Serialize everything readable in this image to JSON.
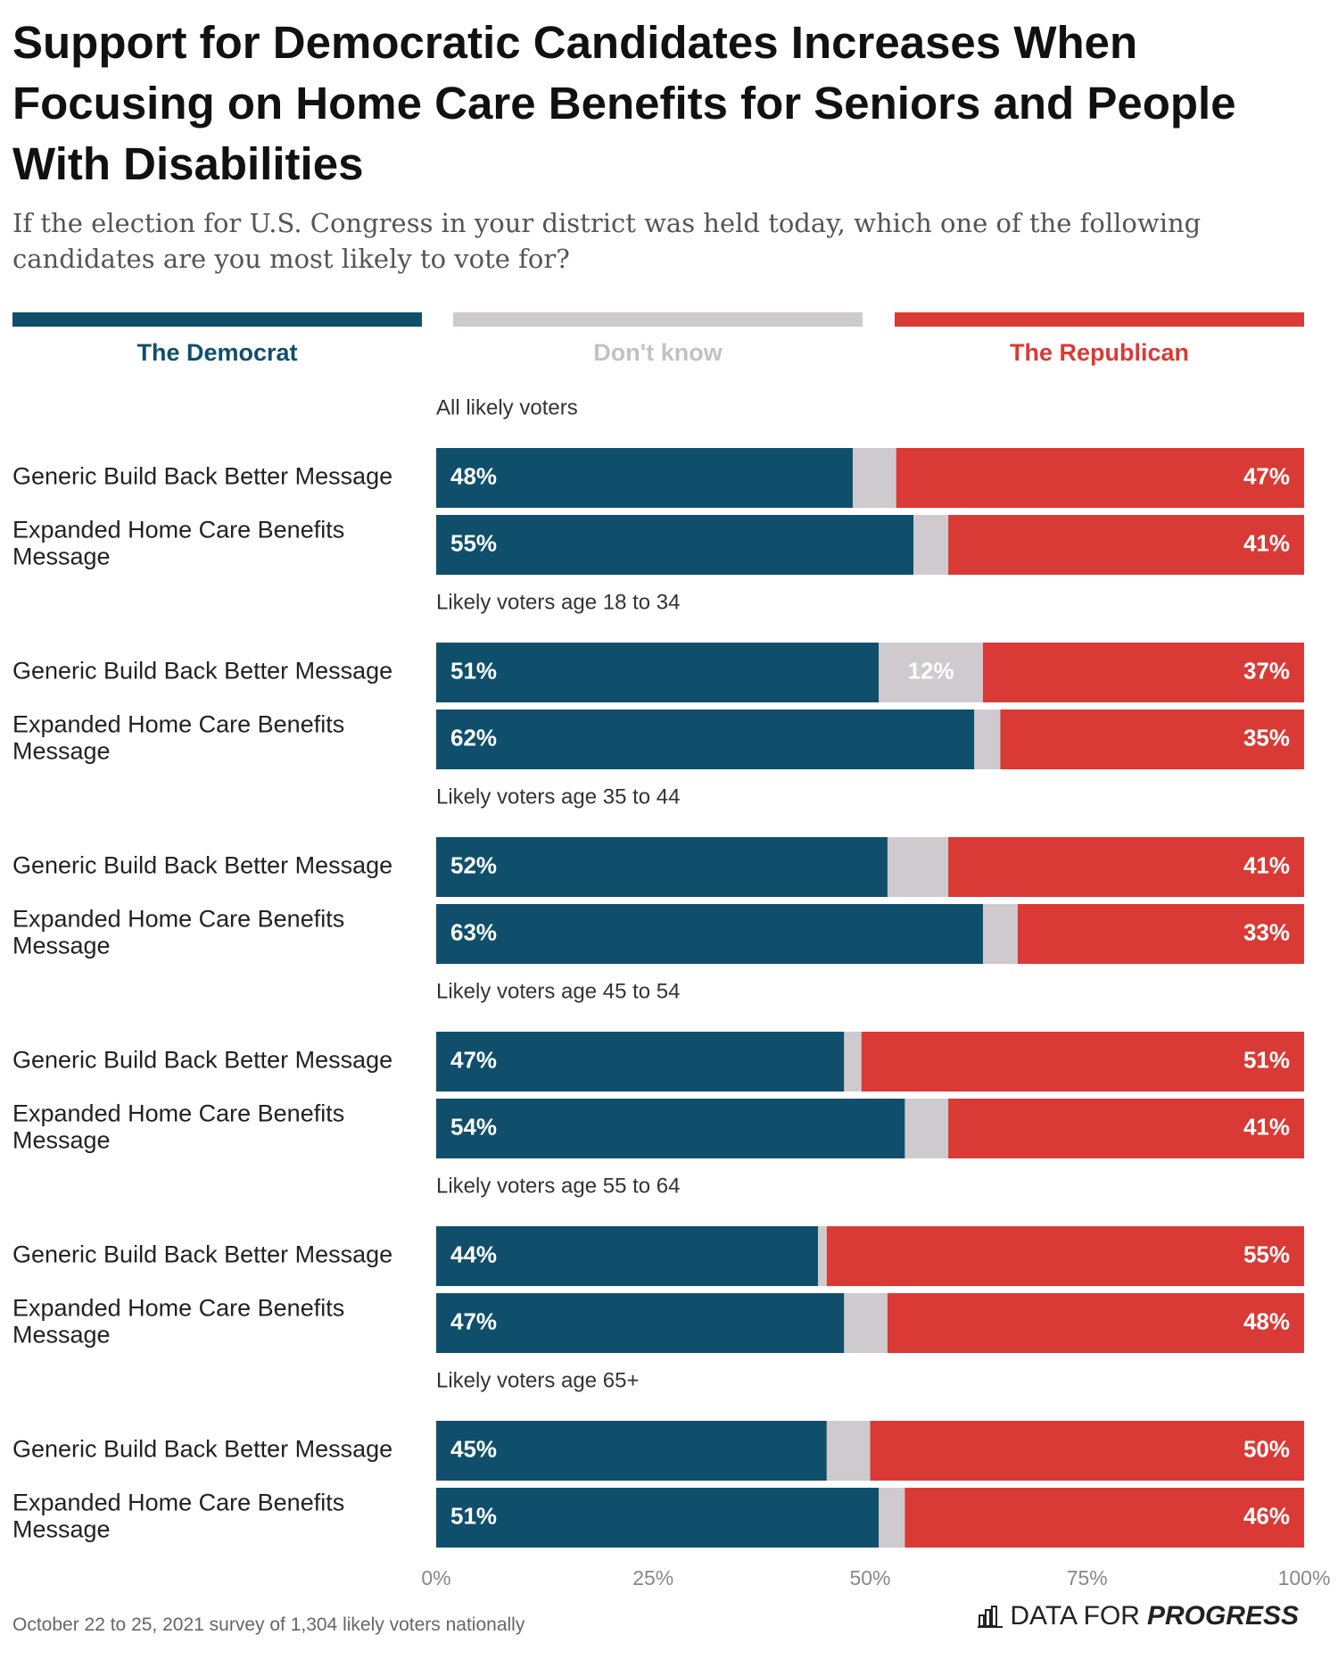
{
  "header": {
    "title": "Support for Democratic Candidates Increases When Focusing on Home Care Benefits for Seniors and People With Disabilities",
    "subtitle": "If the election for U.S. Congress in your district was held today, which one of the following candidates are you most likely to vote for?"
  },
  "legend": {
    "dem": "The Democrat",
    "dk": "Don't know",
    "rep": "The Republican"
  },
  "colors": {
    "dem": "#0f4f6c",
    "dk": "#cfcacd",
    "rep": "#d93a35"
  },
  "footer": {
    "note": "October 22 to 25, 2021 survey of 1,304 likely voters nationally",
    "brand_prefix": "DATA FOR",
    "brand_strong": "PROGRESS",
    "brand_icon": "bar-chart-icon"
  },
  "chart_data": {
    "type": "bar",
    "orientation": "horizontal",
    "stacked": true,
    "xlim": [
      0,
      100
    ],
    "x_ticks": [
      "0%",
      "25%",
      "50%",
      "75%",
      "100%"
    ],
    "series": [
      {
        "name": "The Democrat"
      },
      {
        "name": "Don't know"
      },
      {
        "name": "The Republican"
      }
    ],
    "groups": [
      {
        "label": "All likely voters",
        "rows": [
          {
            "label": "Generic Build Back Better Message",
            "dem": 48,
            "dk": 5,
            "rep": 47,
            "dem_label": "48%",
            "dk_label": "",
            "rep_label": "47%"
          },
          {
            "label": "Expanded Home Care Benefits Message",
            "dem": 55,
            "dk": 4,
            "rep": 41,
            "dem_label": "55%",
            "dk_label": "",
            "rep_label": "41%"
          }
        ]
      },
      {
        "label": "Likely voters age 18 to 34",
        "rows": [
          {
            "label": "Generic Build Back Better Message",
            "dem": 51,
            "dk": 12,
            "rep": 37,
            "dem_label": "51%",
            "dk_label": "12%",
            "rep_label": "37%"
          },
          {
            "label": "Expanded Home Care Benefits Message",
            "dem": 62,
            "dk": 3,
            "rep": 35,
            "dem_label": "62%",
            "dk_label": "",
            "rep_label": "35%"
          }
        ]
      },
      {
        "label": "Likely voters age 35 to 44",
        "rows": [
          {
            "label": "Generic Build Back Better Message",
            "dem": 52,
            "dk": 7,
            "rep": 41,
            "dem_label": "52%",
            "dk_label": "",
            "rep_label": "41%"
          },
          {
            "label": "Expanded Home Care Benefits Message",
            "dem": 63,
            "dk": 4,
            "rep": 33,
            "dem_label": "63%",
            "dk_label": "",
            "rep_label": "33%"
          }
        ]
      },
      {
        "label": "Likely voters age 45 to 54",
        "rows": [
          {
            "label": "Generic Build Back Better Message",
            "dem": 47,
            "dk": 2,
            "rep": 51,
            "dem_label": "47%",
            "dk_label": "",
            "rep_label": "51%"
          },
          {
            "label": "Expanded Home Care Benefits Message",
            "dem": 54,
            "dk": 5,
            "rep": 41,
            "dem_label": "54%",
            "dk_label": "",
            "rep_label": "41%"
          }
        ]
      },
      {
        "label": "Likely voters age 55 to 64",
        "rows": [
          {
            "label": "Generic Build Back Better Message",
            "dem": 44,
            "dk": 1,
            "rep": 55,
            "dem_label": "44%",
            "dk_label": "",
            "rep_label": "55%"
          },
          {
            "label": "Expanded Home Care Benefits Message",
            "dem": 47,
            "dk": 5,
            "rep": 48,
            "dem_label": "47%",
            "dk_label": "",
            "rep_label": "48%"
          }
        ]
      },
      {
        "label": "Likely voters age 65+",
        "rows": [
          {
            "label": "Generic Build Back Better Message",
            "dem": 45,
            "dk": 5,
            "rep": 50,
            "dem_label": "45%",
            "dk_label": "",
            "rep_label": "50%"
          },
          {
            "label": "Expanded Home Care Benefits Message",
            "dem": 51,
            "dk": 3,
            "rep": 46,
            "dem_label": "51%",
            "dk_label": "",
            "rep_label": "46%"
          }
        ]
      }
    ]
  }
}
